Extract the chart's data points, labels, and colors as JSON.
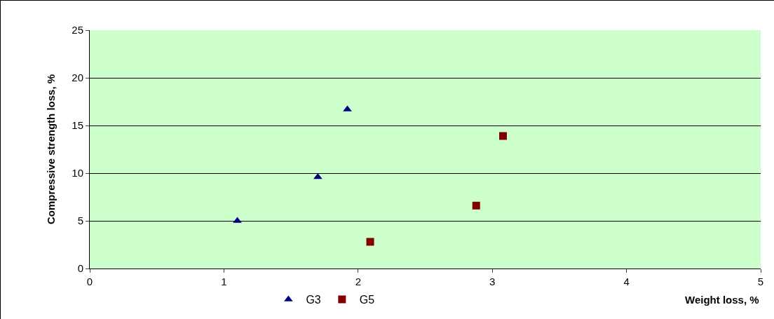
{
  "chart_data": {
    "type": "scatter",
    "xlabel": "Weight loss, %",
    "ylabel": "Compressive strength loss, %",
    "xlim": [
      0,
      5
    ],
    "xticks": [
      0,
      1,
      2,
      3,
      4,
      5
    ],
    "ylim": [
      0,
      25
    ],
    "yticks": [
      0,
      5,
      10,
      15,
      20,
      25
    ],
    "grid": "y",
    "legend": "bottom",
    "series": [
      {
        "name": "G3",
        "color": "#000080",
        "marker": "triangle",
        "x": [
          1.1,
          1.7,
          1.92
        ],
        "values": [
          5.0,
          9.6,
          16.7
        ]
      },
      {
        "name": "G5",
        "color": "#800000",
        "marker": "square",
        "x": [
          2.09,
          2.88,
          3.08
        ],
        "values": [
          2.8,
          6.6,
          13.9
        ]
      }
    ]
  }
}
